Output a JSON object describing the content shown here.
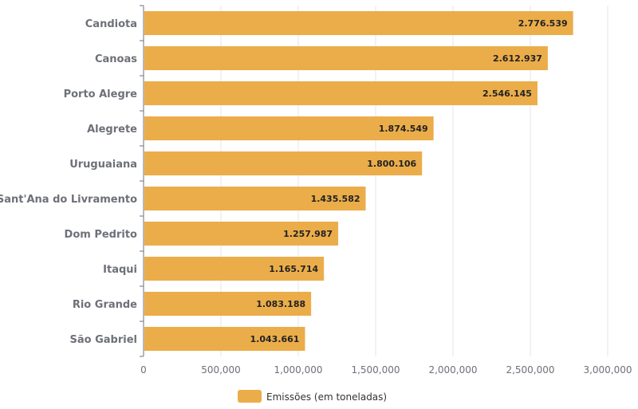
{
  "chart_data": {
    "type": "bar",
    "orientation": "horizontal",
    "categories": [
      "Candiota",
      "Canoas",
      "Porto Alegre",
      "Alegrete",
      "Uruguaiana",
      "Sant'Ana do Livramento",
      "Dom Pedrito",
      "Itaqui",
      "Rio Grande",
      "São Gabriel"
    ],
    "series": [
      {
        "name": "Emissões (em toneladas)",
        "values": [
          2776539,
          2612937,
          2546145,
          1874549,
          1800106,
          1435582,
          1257987,
          1165714,
          1083188,
          1043661
        ],
        "color": "#ebad4a"
      }
    ],
    "data_labels": [
      "2.776.539",
      "2.612.937",
      "2.546.145",
      "1.874.549",
      "1.800.106",
      "1.435.582",
      "1.257.987",
      "1.165.714",
      "1.083.188",
      "1.043.661"
    ],
    "xlim": [
      0,
      3000000
    ],
    "x_ticks": [
      "0",
      "500,000",
      "1,000,000",
      "1,500,000",
      "2,000,000",
      "2,500,000",
      "3,000,000"
    ],
    "grid": true,
    "legend": "bottom"
  }
}
